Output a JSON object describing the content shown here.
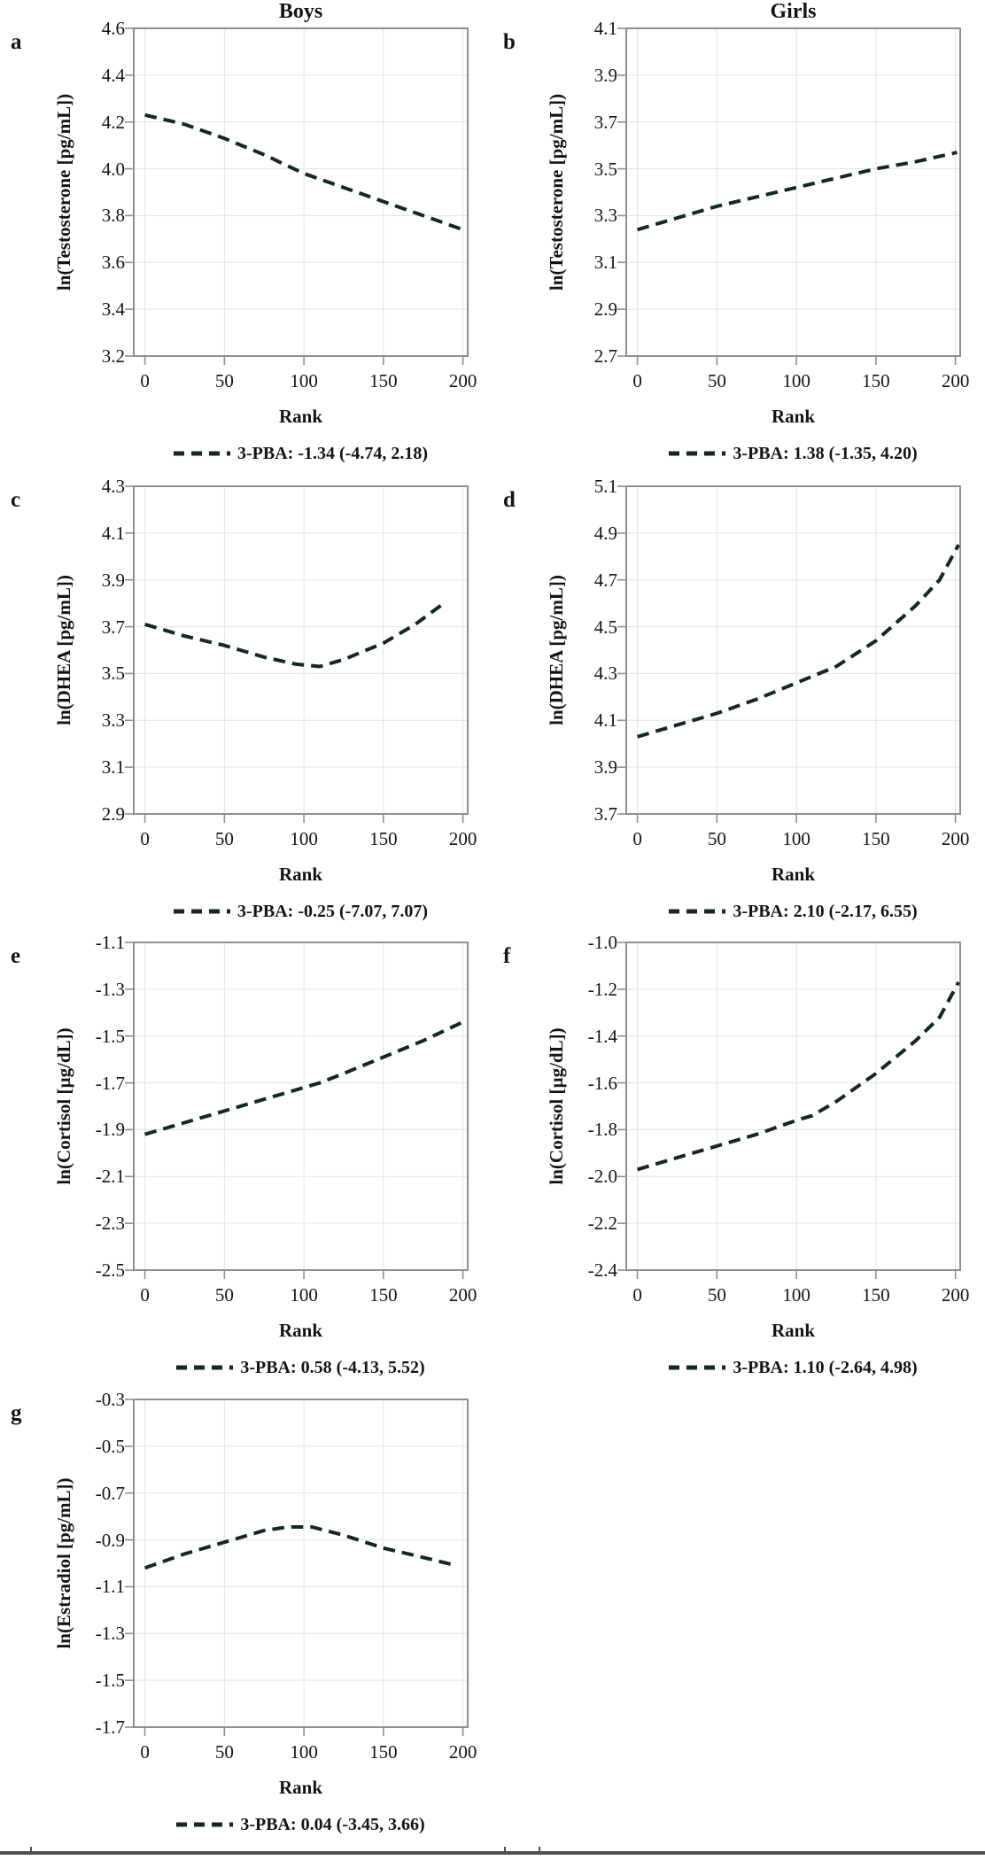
{
  "colors": {
    "dash_line": "#13291b",
    "gridline": "#e3e3e3",
    "plot_border": "#8f8f8f",
    "tick_mark": "#8f8f8f",
    "text": "#141414"
  },
  "layout_hints": {
    "grid": "on",
    "legend_position": "bottom-center",
    "x_domain": [
      -7,
      203
    ]
  },
  "chart_data": [
    {
      "type": "line",
      "letter": "a",
      "col": 0,
      "row": 0,
      "title": "Boys",
      "ylabel": "ln(Testosterone [pg/mL])",
      "xlabel": "Rank",
      "ylim": [
        3.2,
        4.6
      ],
      "yticks": [
        3.2,
        3.4,
        3.6,
        3.8,
        4.0,
        4.2,
        4.4,
        4.6
      ],
      "xticks": [
        0,
        50,
        100,
        150,
        200
      ],
      "legend": "3-PBA: -1.34 (-4.74, 2.18)",
      "points": [
        [
          0,
          4.23
        ],
        [
          25,
          4.19
        ],
        [
          50,
          4.13
        ],
        [
          75,
          4.06
        ],
        [
          100,
          3.98
        ],
        [
          125,
          3.92
        ],
        [
          150,
          3.86
        ],
        [
          175,
          3.8
        ],
        [
          200,
          3.74
        ]
      ]
    },
    {
      "type": "line",
      "letter": "b",
      "col": 1,
      "row": 0,
      "title": "Girls",
      "ylabel": "ln(Testosterone [pg/mL])",
      "xlabel": "Rank",
      "ylim": [
        2.7,
        4.1
      ],
      "yticks": [
        2.7,
        2.9,
        3.1,
        3.3,
        3.5,
        3.7,
        3.9,
        4.1
      ],
      "xticks": [
        0,
        50,
        100,
        150,
        200
      ],
      "legend": "3-PBA: 1.38 (-1.35, 4.20)",
      "points": [
        [
          0,
          3.24
        ],
        [
          25,
          3.29
        ],
        [
          50,
          3.34
        ],
        [
          75,
          3.38
        ],
        [
          100,
          3.42
        ],
        [
          125,
          3.46
        ],
        [
          150,
          3.5
        ],
        [
          175,
          3.53
        ],
        [
          201,
          3.57
        ]
      ]
    },
    {
      "type": "line",
      "letter": "c",
      "col": 0,
      "row": 1,
      "title": "",
      "ylabel": "ln(DHEA [pg/mL])",
      "xlabel": "Rank",
      "ylim": [
        2.9,
        4.3
      ],
      "yticks": [
        2.9,
        3.1,
        3.3,
        3.5,
        3.7,
        3.9,
        4.1,
        4.3
      ],
      "xticks": [
        0,
        50,
        100,
        150,
        200
      ],
      "legend": "3-PBA: -0.25 (-7.07, 7.07)",
      "points": [
        [
          0,
          3.71
        ],
        [
          25,
          3.66
        ],
        [
          50,
          3.62
        ],
        [
          75,
          3.57
        ],
        [
          95,
          3.54
        ],
        [
          110,
          3.53
        ],
        [
          125,
          3.56
        ],
        [
          150,
          3.63
        ],
        [
          170,
          3.71
        ],
        [
          188,
          3.8
        ]
      ]
    },
    {
      "type": "line",
      "letter": "d",
      "col": 1,
      "row": 1,
      "title": "",
      "ylabel": "ln(DHEA [pg/mL])",
      "xlabel": "Rank",
      "ylim": [
        3.7,
        5.1
      ],
      "yticks": [
        3.7,
        3.9,
        4.1,
        4.3,
        4.5,
        4.7,
        4.9,
        5.1
      ],
      "xticks": [
        0,
        50,
        100,
        150,
        200
      ],
      "legend": "3-PBA: 2.10 (-2.17, 6.55)",
      "points": [
        [
          0,
          4.03
        ],
        [
          25,
          4.08
        ],
        [
          50,
          4.13
        ],
        [
          75,
          4.19
        ],
        [
          100,
          4.26
        ],
        [
          125,
          4.33
        ],
        [
          150,
          4.44
        ],
        [
          175,
          4.59
        ],
        [
          190,
          4.7
        ],
        [
          202,
          4.85
        ]
      ]
    },
    {
      "type": "line",
      "letter": "e",
      "col": 0,
      "row": 2,
      "title": "",
      "ylabel": "ln(Cortisol [µg/dL])",
      "xlabel": "Rank",
      "ylim": [
        -2.5,
        -1.1
      ],
      "yticks": [
        -2.5,
        -2.3,
        -2.1,
        -1.9,
        -1.7,
        -1.5,
        -1.3,
        -1.1
      ],
      "xticks": [
        0,
        50,
        100,
        150,
        200
      ],
      "legend": "3-PBA: 0.58 (-4.13, 5.52)",
      "points": [
        [
          0,
          -1.92
        ],
        [
          25,
          -1.87
        ],
        [
          50,
          -1.82
        ],
        [
          75,
          -1.77
        ],
        [
          100,
          -1.72
        ],
        [
          110,
          -1.7
        ],
        [
          125,
          -1.66
        ],
        [
          150,
          -1.59
        ],
        [
          175,
          -1.52
        ],
        [
          200,
          -1.44
        ]
      ]
    },
    {
      "type": "line",
      "letter": "f",
      "col": 1,
      "row": 2,
      "title": "",
      "ylabel": "ln(Cortisol [µg/dL])",
      "xlabel": "Rank",
      "ylim": [
        -2.4,
        -1.0
      ],
      "yticks": [
        -2.4,
        -2.2,
        -2.0,
        -1.8,
        -1.6,
        -1.4,
        -1.2,
        -1.0
      ],
      "xticks": [
        0,
        50,
        100,
        150,
        200
      ],
      "legend": "3-PBA: 1.10 (-2.64, 4.98)",
      "points": [
        [
          0,
          -1.97
        ],
        [
          25,
          -1.92
        ],
        [
          50,
          -1.87
        ],
        [
          75,
          -1.82
        ],
        [
          100,
          -1.76
        ],
        [
          110,
          -1.74
        ],
        [
          125,
          -1.68
        ],
        [
          150,
          -1.56
        ],
        [
          175,
          -1.42
        ],
        [
          190,
          -1.32
        ],
        [
          202,
          -1.17
        ]
      ]
    },
    {
      "type": "line",
      "letter": "g",
      "col": 0,
      "row": 3,
      "title": "",
      "ylabel": "ln(Estradiol [pg/mL])",
      "xlabel": "Rank",
      "ylim": [
        -1.7,
        -0.3
      ],
      "yticks": [
        -1.7,
        -1.5,
        -1.3,
        -1.1,
        -0.9,
        -0.7,
        -0.5,
        -0.3
      ],
      "xticks": [
        0,
        50,
        100,
        150,
        200
      ],
      "legend": "3-PBA: 0.04 (-3.45, 3.66)",
      "points": [
        [
          0,
          -1.02
        ],
        [
          25,
          -0.96
        ],
        [
          50,
          -0.91
        ],
        [
          75,
          -0.86
        ],
        [
          90,
          -0.845
        ],
        [
          105,
          -0.845
        ],
        [
          125,
          -0.88
        ],
        [
          150,
          -0.935
        ],
        [
          175,
          -0.975
        ],
        [
          196,
          -1.01
        ]
      ]
    }
  ]
}
